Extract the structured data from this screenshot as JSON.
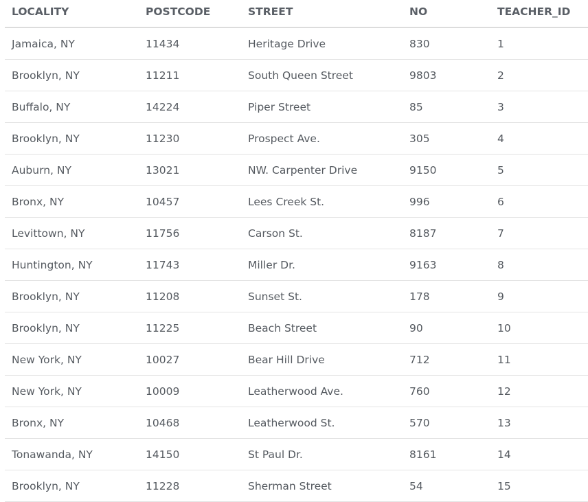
{
  "table": {
    "columns": [
      "LOCALITY",
      "POSTCODE",
      "STREET",
      "NO",
      "TEACHER_ID"
    ],
    "rows": [
      [
        "Jamaica, NY",
        "11434",
        "Heritage Drive",
        "830",
        "1"
      ],
      [
        "Brooklyn, NY",
        "11211",
        "South Queen Street",
        "9803",
        "2"
      ],
      [
        "Buffalo, NY",
        "14224",
        "Piper Street",
        "85",
        "3"
      ],
      [
        "Brooklyn, NY",
        "11230",
        "Prospect Ave.",
        "305",
        "4"
      ],
      [
        "Auburn, NY",
        "13021",
        "NW. Carpenter Drive",
        "9150",
        "5"
      ],
      [
        "Bronx, NY",
        "10457",
        "Lees Creek St.",
        "996",
        "6"
      ],
      [
        "Levittown, NY",
        "11756",
        "Carson St.",
        "8187",
        "7"
      ],
      [
        "Huntington, NY",
        "11743",
        "Miller Dr.",
        "9163",
        "8"
      ],
      [
        "Brooklyn, NY",
        "11208",
        "Sunset St.",
        "178",
        "9"
      ],
      [
        "Brooklyn, NY",
        "11225",
        "Beach Street",
        "90",
        "10"
      ],
      [
        "New York, NY",
        "10027",
        "Bear Hill Drive",
        "712",
        "11"
      ],
      [
        "New York, NY",
        "10009",
        "Leatherwood Ave.",
        "760",
        "12"
      ],
      [
        "Bronx, NY",
        "10468",
        "Leatherwood St.",
        "570",
        "13"
      ],
      [
        "Tonawanda, NY",
        "14150",
        "St Paul Dr.",
        "8161",
        "14"
      ],
      [
        "Brooklyn, NY",
        "11228",
        "Sherman Street",
        "54",
        "15"
      ]
    ]
  }
}
